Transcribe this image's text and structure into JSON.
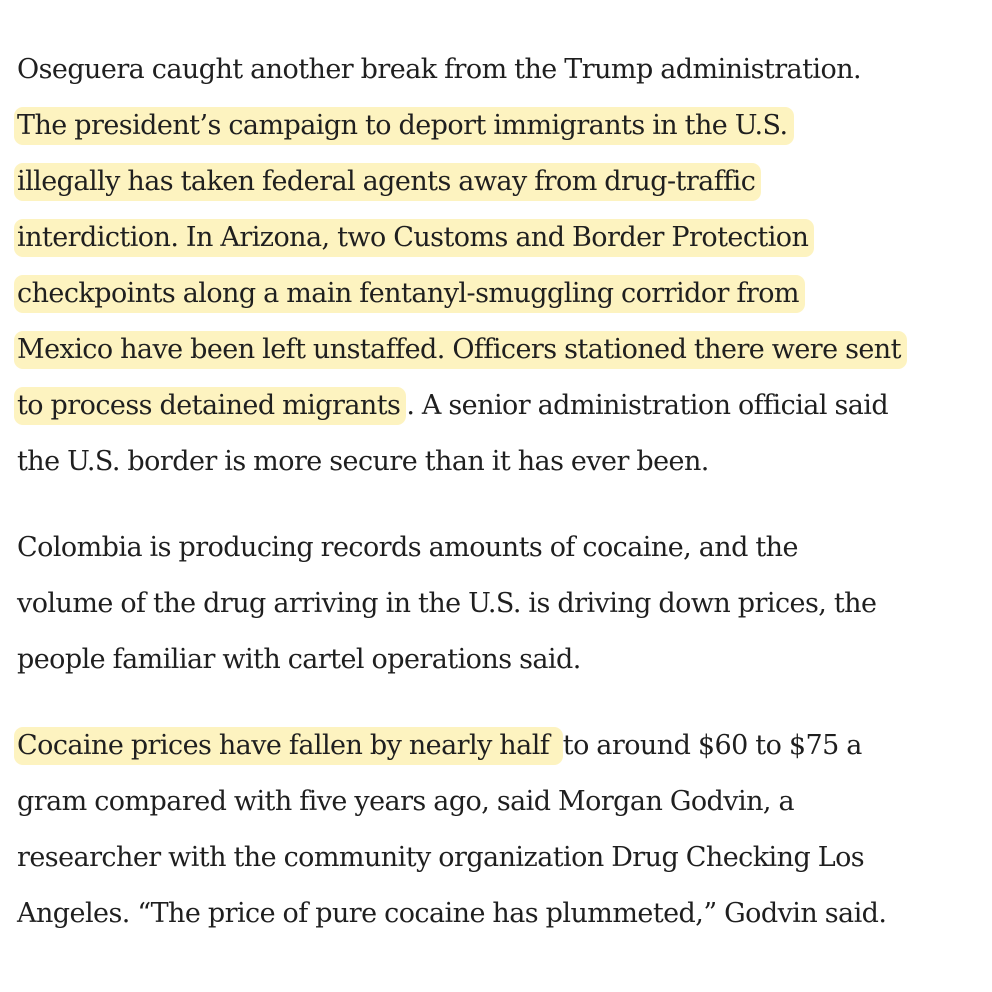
{
  "paragraphs": [
    {
      "lines": [
        {
          "pre": "Oseguera caught another break from the Trump administration.",
          "hl": "",
          "post": ""
        },
        {
          "pre": "",
          "hl": "The president’s campaign to deport immigrants in the U.S.",
          "post": ""
        },
        {
          "pre": "",
          "hl": "illegally has taken federal agents away from drug-traffic",
          "post": ""
        },
        {
          "pre": "",
          "hl": "interdiction. In Arizona, two Customs and Border Protection",
          "post": ""
        },
        {
          "pre": "",
          "hl": "checkpoints along a main fentanyl-smuggling corridor from",
          "post": ""
        },
        {
          "pre": "",
          "hl": "Mexico have been left unstaffed. Officers stationed there were sent",
          "post": ""
        },
        {
          "pre": "",
          "hl": "to process detained migrants",
          "post": ". A senior administration official said"
        },
        {
          "pre": "the U.S. border is more secure than it has ever been.",
          "hl": "",
          "post": ""
        }
      ]
    },
    {
      "lines": [
        {
          "pre": "Colombia is producing records amounts of cocaine, and the",
          "hl": "",
          "post": ""
        },
        {
          "pre": "volume of the drug arriving in the U.S. is driving down prices, the",
          "hl": "",
          "post": ""
        },
        {
          "pre": "people familiar with cartel operations said.",
          "hl": "",
          "post": ""
        }
      ]
    },
    {
      "lines": [
        {
          "pre": "",
          "hl": "Cocaine prices have fallen by nearly half ",
          "post": "to around $60 to $75 a"
        },
        {
          "pre": "gram compared with five years ago, said Morgan Godvin, a",
          "hl": "",
          "post": ""
        },
        {
          "pre": "researcher with the community organization Drug Checking Los",
          "hl": "",
          "post": ""
        },
        {
          "pre": "Angeles. “The price of pure cocaine has plummeted,” Godvin said.",
          "hl": "",
          "post": ""
        }
      ]
    }
  ],
  "colors": {
    "text": "#1f1f1f",
    "highlight": "#fdf3c0",
    "background": "#ffffff"
  }
}
